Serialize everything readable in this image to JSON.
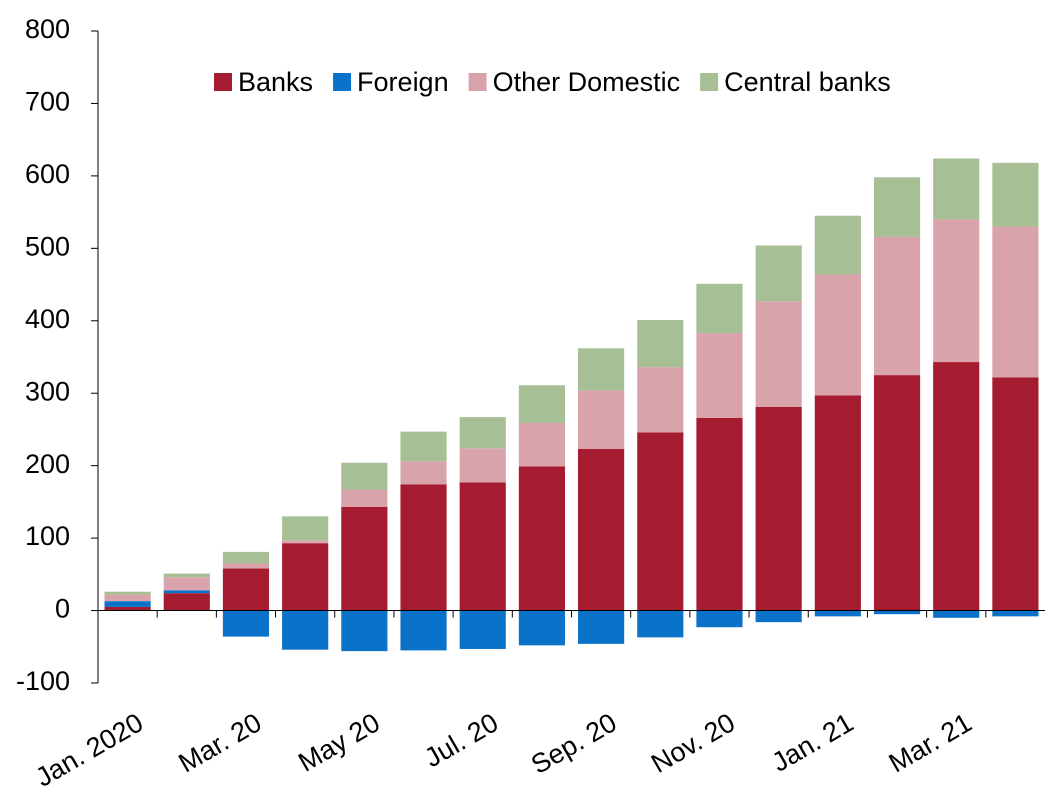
{
  "chart_data": {
    "type": "stacked-bar",
    "categories": [
      "Jan. 2020",
      null,
      "Mar. 20",
      null,
      "May 20",
      null,
      "Jul. 20",
      null,
      "Sep. 20",
      null,
      "Nov. 20",
      null,
      "Jan. 21",
      null,
      "Mar. 21",
      null
    ],
    "series": [
      {
        "name": "Banks",
        "color": "#a51c30",
        "values": [
          5,
          24,
          58,
          93,
          143,
          174,
          177,
          199,
          223,
          246,
          266,
          281,
          297,
          325,
          343,
          322
        ]
      },
      {
        "name": "Foreign",
        "color": "#0b72c9",
        "values": [
          8,
          4,
          -36,
          -54,
          -56,
          -55,
          -53,
          -48,
          -46,
          -37,
          -23,
          -16,
          -8,
          -5,
          -10,
          -8
        ]
      },
      {
        "name": "Other Domestic",
        "color": "#d9a3ab",
        "values": [
          9,
          18,
          7,
          4,
          24,
          32,
          47,
          60,
          81,
          90,
          117,
          146,
          167,
          191,
          197,
          208
        ]
      },
      {
        "name": "Central banks",
        "color": "#a7bf94",
        "values": [
          4,
          5,
          16,
          33,
          37,
          41,
          43,
          52,
          58,
          65,
          68,
          77,
          81,
          82,
          84,
          88
        ]
      }
    ],
    "ylim": [
      -100,
      800
    ],
    "yticks": [
      -100,
      0,
      100,
      200,
      300,
      400,
      500,
      600,
      700,
      800
    ]
  }
}
